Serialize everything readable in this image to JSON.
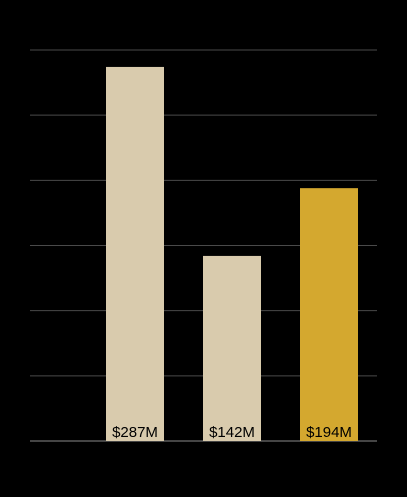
{
  "chart_data": {
    "type": "bar",
    "values": [
      287,
      142,
      194
    ],
    "value_labels": [
      "$287M",
      "$142M",
      "$194M"
    ],
    "colors": [
      "#d9cbad",
      "#d9cbad",
      "#d4a82f"
    ],
    "ylim": [
      0,
      300
    ],
    "yticks": [
      0,
      50,
      100,
      150,
      200,
      250,
      300
    ],
    "grid": true
  }
}
